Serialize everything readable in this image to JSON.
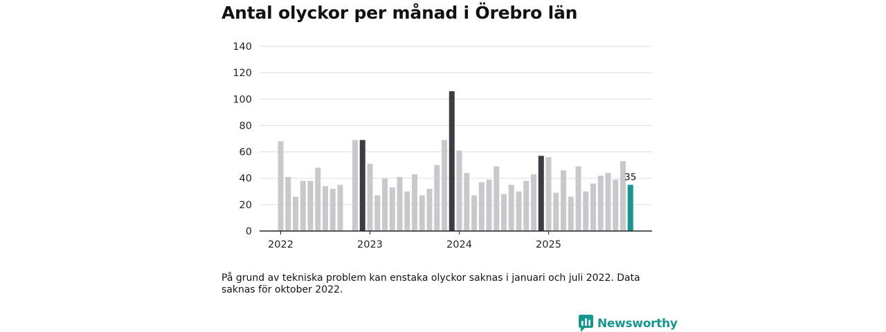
{
  "chart_data": {
    "type": "bar",
    "title": "Antal olyckor per månad i Örebro län",
    "xlabel": "",
    "ylabel": "",
    "ylim": [
      0,
      140
    ],
    "yticks": [
      0,
      20,
      40,
      60,
      80,
      100,
      120,
      140
    ],
    "xtick_labels": [
      "2022",
      "2023",
      "2024",
      "2025"
    ],
    "months": [
      "2022-01",
      "2022-02",
      "2022-03",
      "2022-04",
      "2022-05",
      "2022-06",
      "2022-07",
      "2022-08",
      "2022-09",
      "2022-10",
      "2022-11",
      "2022-12",
      "2023-01",
      "2023-02",
      "2023-03",
      "2023-04",
      "2023-05",
      "2023-06",
      "2023-07",
      "2023-08",
      "2023-09",
      "2023-10",
      "2023-11",
      "2023-12",
      "2024-01",
      "2024-02",
      "2024-03",
      "2024-04",
      "2024-05",
      "2024-06",
      "2024-07",
      "2024-08",
      "2024-09",
      "2024-10",
      "2024-11",
      "2024-12",
      "2025-01",
      "2025-02",
      "2025-03",
      "2025-04",
      "2025-05",
      "2025-06",
      "2025-07",
      "2025-08",
      "2025-09",
      "2025-10",
      "2025-11",
      "2025-12"
    ],
    "values": [
      68,
      41,
      26,
      38,
      38,
      48,
      34,
      32,
      35,
      null,
      69,
      69,
      51,
      27,
      40,
      33,
      41,
      30,
      43,
      27,
      32,
      50,
      69,
      106,
      61,
      44,
      27,
      37,
      39,
      49,
      28,
      35,
      30,
      38,
      43,
      57,
      56,
      29,
      46,
      26,
      49,
      30,
      36,
      42,
      44,
      39,
      53,
      35
    ],
    "highlight_months": [
      "2022-12",
      "2023-12",
      "2024-12"
    ],
    "latest_month": "2025-12",
    "data_label": "35",
    "colors": {
      "default": "#c8c8cd",
      "highlight": "#3c3c43",
      "latest": "#16968e",
      "grid": "#dddddd",
      "axis": "#222222"
    }
  },
  "note": "På grund av tekniska problem kan enstaka olyckor saknas i januari och juli 2022. Data saknas för oktober 2022.",
  "brand": {
    "name": "Newsworthy",
    "icon": "newsworthy-logo-icon",
    "color": "#16968e"
  }
}
